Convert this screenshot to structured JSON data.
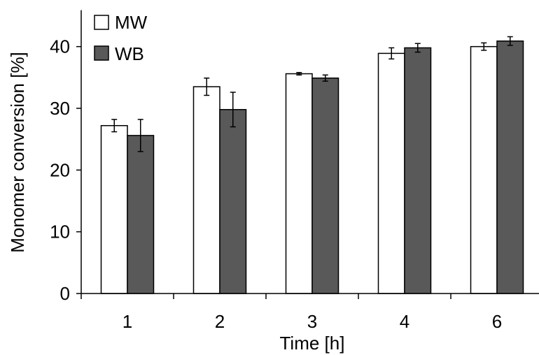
{
  "chart_data": {
    "type": "bar",
    "title": "",
    "xlabel": "Time [h]",
    "ylabel": "Monomer conversion [%]",
    "categories": [
      "1",
      "2",
      "3",
      "4",
      "6"
    ],
    "ylim": [
      0,
      45
    ],
    "yticks": [
      0,
      10,
      20,
      30,
      40
    ],
    "grid": false,
    "legend_position": "top-left",
    "series": [
      {
        "name": "MW",
        "color": "#ffffff",
        "values": [
          27.2,
          33.5,
          35.6,
          38.9,
          40.0
        ],
        "errors": [
          1.0,
          1.4,
          0.2,
          0.9,
          0.6
        ]
      },
      {
        "name": "WB",
        "color": "#595959",
        "values": [
          25.6,
          29.8,
          34.9,
          39.8,
          40.9
        ],
        "errors": [
          2.6,
          2.8,
          0.5,
          0.7,
          0.7
        ]
      }
    ]
  }
}
